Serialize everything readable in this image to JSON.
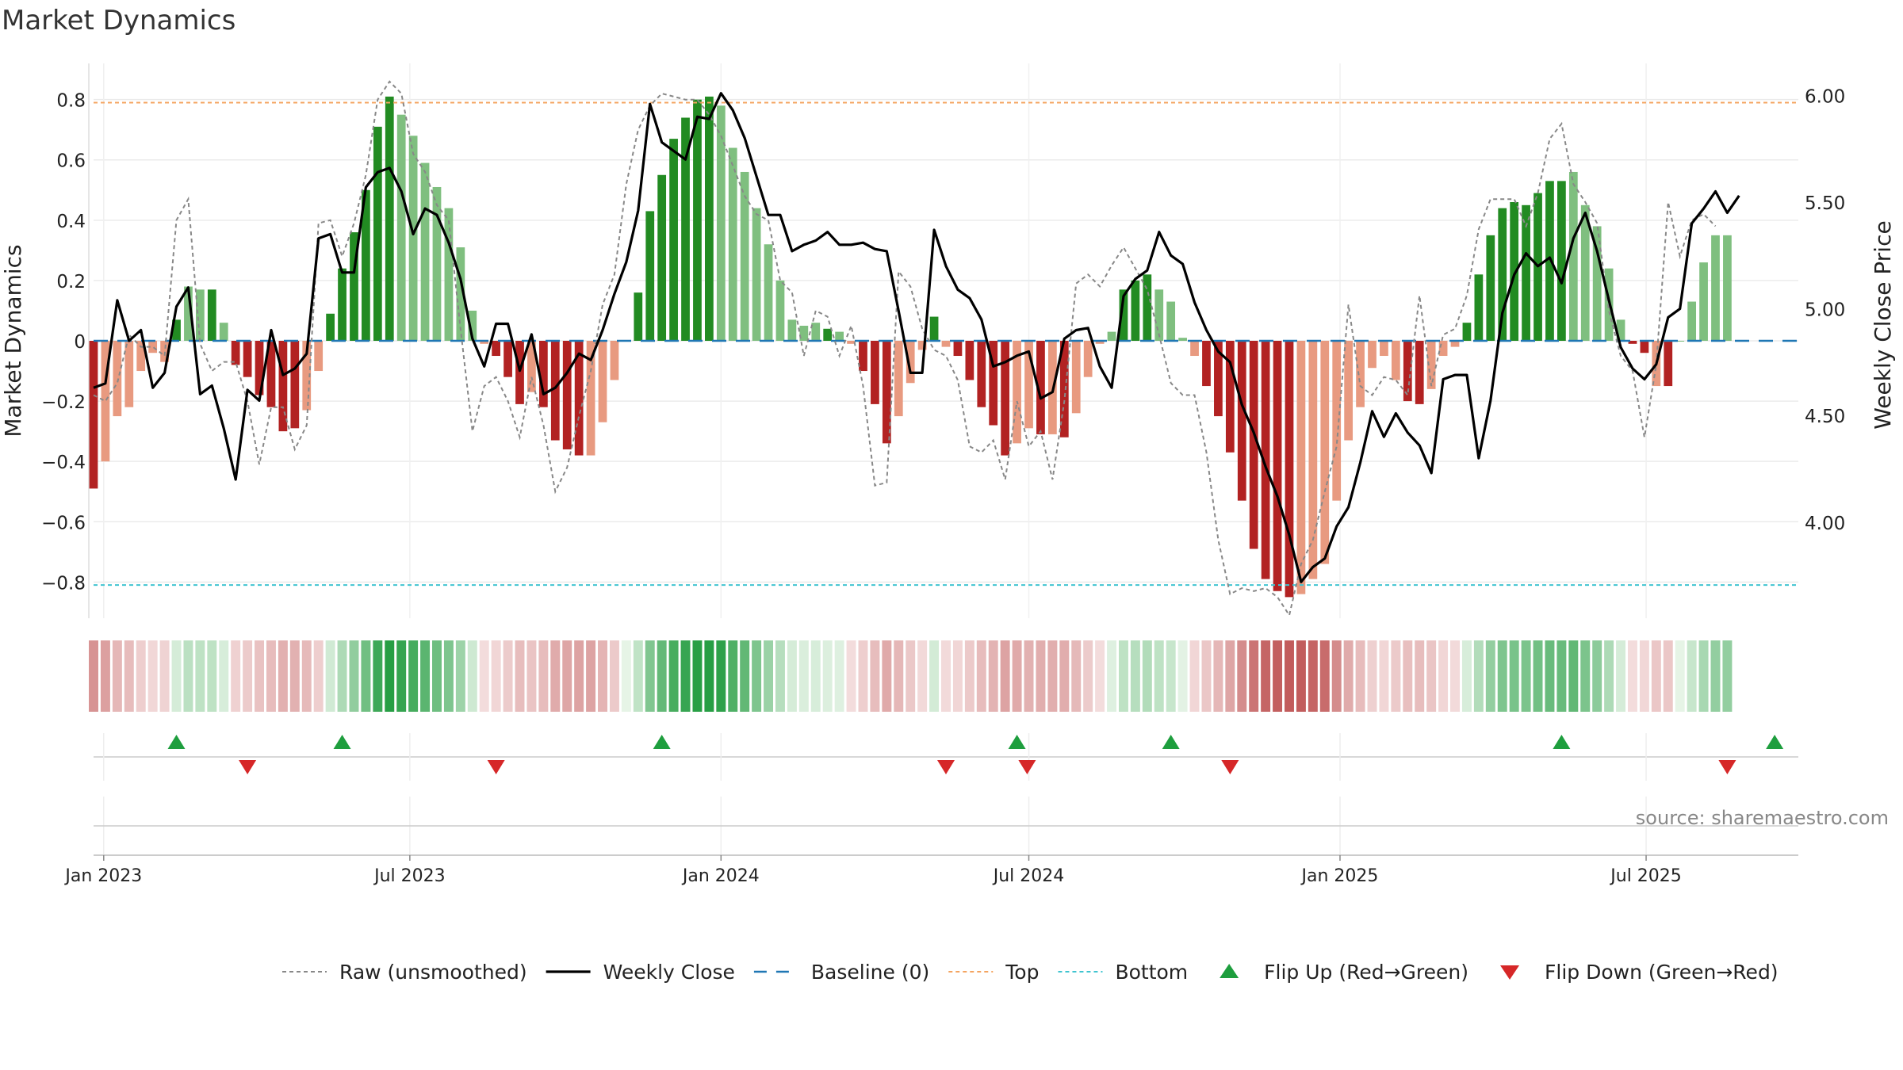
{
  "chart_data": {
    "type": "bar",
    "title": "Market Dynamics",
    "ylabel": "Market Dynamics",
    "y2label": "Weekly Close Price",
    "source": "source: sharemaestro.com",
    "ylim": [
      -0.92,
      0.92
    ],
    "y2lim": [
      3.55,
      6.15
    ],
    "yticks": [
      {
        "v": 0.8,
        "label": "0.8"
      },
      {
        "v": 0.6,
        "label": "0.6"
      },
      {
        "v": 0.4,
        "label": "0.4"
      },
      {
        "v": 0.2,
        "label": "0.2"
      },
      {
        "v": 0,
        "label": "0"
      },
      {
        "v": -0.2,
        "label": "−0.2"
      },
      {
        "v": -0.4,
        "label": "−0.4"
      },
      {
        "v": -0.6,
        "label": "−0.6"
      },
      {
        "v": -0.8,
        "label": "−0.8"
      }
    ],
    "y2ticks": [
      {
        "v": 6.0,
        "label": "6.00"
      },
      {
        "v": 5.5,
        "label": "5.50"
      },
      {
        "v": 5.0,
        "label": "5.00"
      },
      {
        "v": 4.5,
        "label": "4.50"
      },
      {
        "v": 4.0,
        "label": "4.00"
      }
    ],
    "x_start": "2022-12-26",
    "x_end": "2025-09-29",
    "xticks": [
      {
        "date": "2023-01-01",
        "label": "Jan 2023"
      },
      {
        "date": "2023-07-01",
        "label": "Jul 2023"
      },
      {
        "date": "2024-01-01",
        "label": "Jan 2024"
      },
      {
        "date": "2024-07-01",
        "label": "Jul 2024"
      },
      {
        "date": "2025-01-01",
        "label": "Jan 2025"
      },
      {
        "date": "2025-07-01",
        "label": "Jul 2025"
      }
    ],
    "top_line": 0.79,
    "bottom_line": -0.81,
    "colors": {
      "strong_green": "#228b22",
      "light_green": "#7fbf7f",
      "strong_red": "#b22222",
      "light_red": "#e89a80",
      "top": "#f4a460",
      "bottom": "#40c4d0",
      "baseline": "#1f77b4",
      "raw": "#888888",
      "close": "#000000",
      "flip_up": "#1e9e3e",
      "flip_down": "#d62728"
    },
    "bars": {
      "start": "2022-12-26",
      "step_days": 7,
      "values": [
        -0.49,
        -0.4,
        -0.25,
        -0.22,
        -0.1,
        -0.04,
        -0.07,
        0.07,
        0.18,
        0.17,
        0.17,
        0.06,
        -0.08,
        -0.12,
        -0.18,
        -0.22,
        -0.3,
        -0.29,
        -0.23,
        -0.1,
        0.09,
        0.24,
        0.36,
        0.5,
        0.71,
        0.81,
        0.75,
        0.68,
        0.59,
        0.51,
        0.44,
        0.31,
        0.1,
        -0.01,
        -0.05,
        -0.12,
        -0.21,
        -0.17,
        -0.22,
        -0.33,
        -0.36,
        -0.38,
        -0.38,
        -0.27,
        -0.13,
        0.0,
        0.16,
        0.43,
        0.55,
        0.67,
        0.74,
        0.8,
        0.81,
        0.78,
        0.64,
        0.56,
        0.44,
        0.32,
        0.2,
        0.07,
        0.05,
        0.06,
        0.04,
        0.03,
        -0.01,
        -0.1,
        -0.21,
        -0.34,
        -0.25,
        -0.14,
        -0.03,
        0.08,
        -0.02,
        -0.05,
        -0.13,
        -0.22,
        -0.28,
        -0.38,
        -0.34,
        -0.29,
        -0.31,
        -0.31,
        -0.32,
        -0.24,
        -0.12,
        -0.01,
        0.03,
        0.17,
        0.2,
        0.22,
        0.17,
        0.13,
        0.01,
        -0.05,
        -0.15,
        -0.25,
        -0.37,
        -0.53,
        -0.69,
        -0.79,
        -0.83,
        -0.85,
        -0.84,
        -0.79,
        -0.74,
        -0.53,
        -0.33,
        -0.22,
        -0.09,
        -0.05,
        -0.13,
        -0.2,
        -0.21,
        -0.16,
        -0.05,
        -0.02,
        0.06,
        0.22,
        0.35,
        0.44,
        0.46,
        0.45,
        0.49,
        0.53,
        0.53,
        0.56,
        0.45,
        0.38,
        0.24,
        0.07,
        -0.01,
        -0.04,
        -0.15,
        -0.15,
        0.0,
        0.13,
        0.26,
        0.35,
        0.35
      ],
      "strength": [
        2,
        1,
        1,
        1,
        1,
        1,
        1,
        2,
        1,
        1,
        2,
        1,
        2,
        2,
        2,
        2,
        2,
        2,
        1,
        1,
        2,
        2,
        2,
        2,
        2,
        2,
        1,
        1,
        1,
        1,
        1,
        1,
        1,
        1,
        2,
        2,
        2,
        1,
        2,
        2,
        2,
        2,
        1,
        1,
        1,
        1,
        2,
        2,
        2,
        2,
        2,
        2,
        2,
        1,
        1,
        1,
        1,
        1,
        1,
        1,
        1,
        1,
        2,
        1,
        1,
        2,
        2,
        2,
        1,
        1,
        1,
        2,
        1,
        2,
        2,
        2,
        2,
        2,
        1,
        1,
        2,
        1,
        2,
        1,
        1,
        1,
        1,
        2,
        2,
        2,
        1,
        1,
        1,
        1,
        2,
        2,
        2,
        2,
        2,
        2,
        2,
        2,
        1,
        1,
        1,
        1,
        1,
        1,
        1,
        1,
        1,
        2,
        2,
        1,
        1,
        1,
        2,
        2,
        2,
        2,
        2,
        2,
        2,
        2,
        2,
        1,
        1,
        1,
        1,
        1,
        2,
        2,
        1,
        2,
        1,
        1
      ]
    },
    "raw_series": {
      "start": "2022-12-26",
      "step_days": 7,
      "values": [
        -0.18,
        -0.2,
        -0.14,
        0.02,
        -0.02,
        -0.02,
        -0.05,
        0.4,
        0.47,
        -0.01,
        -0.1,
        -0.07,
        -0.07,
        -0.2,
        -0.41,
        -0.22,
        -0.22,
        -0.36,
        -0.28,
        0.39,
        0.4,
        0.28,
        0.39,
        0.55,
        0.8,
        0.86,
        0.82,
        0.62,
        0.56,
        0.45,
        0.4,
        0.04,
        -0.3,
        -0.15,
        -0.12,
        -0.2,
        -0.32,
        -0.12,
        -0.28,
        -0.5,
        -0.42,
        -0.25,
        -0.1,
        0.12,
        0.22,
        0.52,
        0.7,
        0.78,
        0.82,
        0.81,
        0.8,
        0.8,
        0.75,
        0.68,
        0.58,
        0.48,
        0.42,
        0.4,
        0.2,
        0.16,
        -0.05,
        0.1,
        0.08,
        -0.05,
        0.05,
        -0.15,
        -0.48,
        -0.47,
        0.23,
        0.18,
        0.04,
        -0.03,
        -0.05,
        -0.13,
        -0.35,
        -0.37,
        -0.33,
        -0.46,
        -0.2,
        -0.35,
        -0.3,
        -0.46,
        -0.2,
        0.19,
        0.22,
        0.18,
        0.25,
        0.31,
        0.24,
        0.17,
        0.02,
        -0.14,
        -0.18,
        -0.18,
        -0.37,
        -0.66,
        -0.84,
        -0.82,
        -0.83,
        -0.82,
        -0.85,
        -0.91,
        -0.74,
        -0.66,
        -0.5,
        -0.35,
        0.12,
        -0.15,
        -0.18,
        -0.12,
        -0.13,
        -0.18,
        0.15,
        -0.15,
        0.02,
        0.04,
        0.15,
        0.37,
        0.47,
        0.47,
        0.47,
        0.38,
        0.49,
        0.67,
        0.72,
        0.52,
        0.46,
        0.39,
        0.1,
        -0.05,
        -0.1,
        -0.32,
        -0.08,
        0.46,
        0.28,
        0.4,
        0.42,
        0.38
      ]
    },
    "close_series": {
      "start": "2022-12-26",
      "step_days": 7,
      "values": [
        4.63,
        4.65,
        5.04,
        4.85,
        4.9,
        4.63,
        4.7,
        5.01,
        5.1,
        4.6,
        4.64,
        4.44,
        4.2,
        4.62,
        4.57,
        4.9,
        4.69,
        4.72,
        4.79,
        5.33,
        5.35,
        5.17,
        5.17,
        5.57,
        5.64,
        5.66,
        5.55,
        5.35,
        5.47,
        5.44,
        5.31,
        5.14,
        4.86,
        4.73,
        4.93,
        4.93,
        4.71,
        4.88,
        4.6,
        4.63,
        4.7,
        4.79,
        4.76,
        4.9,
        5.07,
        5.22,
        5.46,
        5.96,
        5.78,
        5.74,
        5.7,
        5.9,
        5.89,
        6.01,
        5.93,
        5.8,
        5.62,
        5.44,
        5.44,
        5.27,
        5.3,
        5.32,
        5.36,
        5.3,
        5.3,
        5.31,
        5.28,
        5.27,
        4.99,
        4.7,
        4.7,
        5.37,
        5.2,
        5.09,
        5.05,
        4.95,
        4.73,
        4.75,
        4.78,
        4.8,
        4.58,
        4.61,
        4.86,
        4.9,
        4.91,
        4.73,
        4.63,
        5.06,
        5.14,
        5.18,
        5.36,
        5.25,
        5.21,
        5.03,
        4.9,
        4.8,
        4.75,
        4.55,
        4.42,
        4.26,
        4.12,
        3.94,
        3.72,
        3.79,
        3.83,
        3.98,
        4.07,
        4.28,
        4.52,
        4.4,
        4.51,
        4.42,
        4.36,
        4.23,
        4.67,
        4.69,
        4.69,
        4.3,
        4.57,
        4.98,
        5.16,
        5.26,
        5.2,
        5.24,
        5.12,
        5.33,
        5.45,
        5.27,
        5.04,
        4.82,
        4.72,
        4.67,
        4.74,
        4.96,
        5.0,
        5.4,
        5.47,
        5.55,
        5.45,
        5.53
      ]
    },
    "flips_up": [
      "2023-02-13",
      "2023-05-22",
      "2023-11-27",
      "2024-06-24",
      "2024-09-23",
      "2025-05-12",
      "2025-09-15"
    ],
    "flips_down": [
      "2023-03-27",
      "2023-08-21",
      "2024-05-13",
      "2024-06-30",
      "2024-10-28",
      "2025-08-18"
    ],
    "legend": [
      {
        "key": "raw",
        "label": "Raw (unsmoothed)",
        "style": "dashed-grey"
      },
      {
        "key": "close",
        "label": "Weekly Close",
        "style": "solid-black"
      },
      {
        "key": "baseline",
        "label": "Baseline (0)",
        "style": "dashed-blue"
      },
      {
        "key": "top",
        "label": "Top",
        "style": "dotted-orange"
      },
      {
        "key": "bottom",
        "label": "Bottom",
        "style": "dotted-cyan"
      },
      {
        "key": "flip_up",
        "label": "Flip Up (Red→Green)",
        "style": "triangle-up"
      },
      {
        "key": "flip_down",
        "label": "Flip Down (Green→Red)",
        "style": "triangle-down"
      }
    ]
  }
}
